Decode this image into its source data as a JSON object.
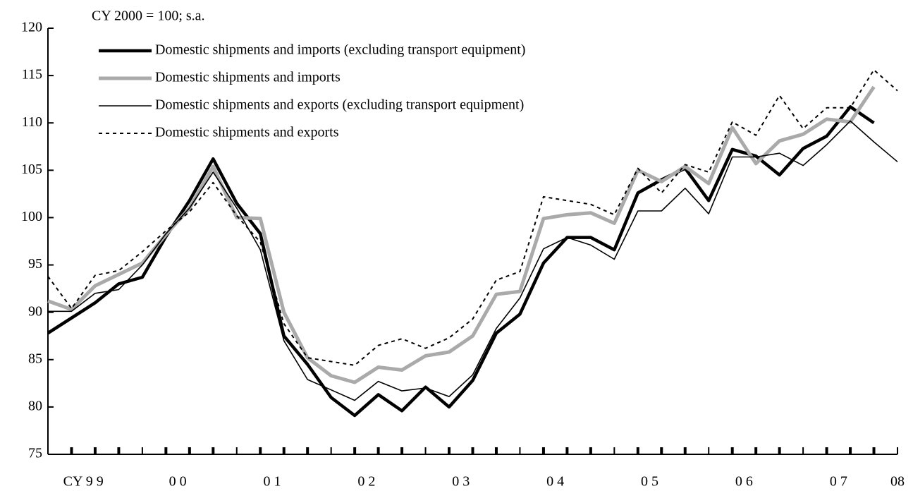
{
  "chart_data": {
    "type": "line",
    "y_unit_label": "CY 2000 = 100; s.a.",
    "xlabels": [
      "CY 9 9",
      "0 0",
      "0 1",
      "0 2",
      "0 3",
      "0 4",
      "0 5",
      "0 6",
      "0 7",
      "08"
    ],
    "ylim": [
      75,
      120
    ],
    "yticks": [
      75,
      80,
      85,
      90,
      95,
      100,
      105,
      110,
      115,
      120
    ],
    "grid": false,
    "legend": "upper left",
    "series": [
      {
        "name": "Domestic shipments and imports (excluding transport equipment)",
        "color": "#000000",
        "width": 4.5,
        "dash": "none",
        "values": [
          87.8,
          89.4,
          91,
          93,
          93.7,
          98,
          101.8,
          106.2,
          101.5,
          98.3,
          87.5,
          84.5,
          81,
          79.1,
          81.3,
          79.6,
          82.1,
          80,
          82.8,
          87.8,
          89.8,
          95.2,
          97.9,
          97.9,
          96.6,
          102.6,
          104,
          105.2,
          101.8,
          107.2,
          106.5,
          104.5,
          107.3,
          108.6,
          111.7,
          110,
          null
        ]
      },
      {
        "name": "Domestic shipments and imports",
        "color": "#aaaaaa",
        "width": 5,
        "dash": "none",
        "values": [
          91.2,
          90.3,
          92.8,
          94,
          95.2,
          98.2,
          101,
          105.4,
          100,
          99.9,
          90,
          85.2,
          83.3,
          82.6,
          84.2,
          83.9,
          85.4,
          85.8,
          87.5,
          91.9,
          92.2,
          99.9,
          100.3,
          100.5,
          99.4,
          105,
          103.8,
          105.4,
          103.6,
          109.5,
          105.7,
          108.1,
          108.8,
          110.4,
          110.1,
          113.8,
          null
        ]
      },
      {
        "name": "Domestic shipments and exports (excluding transport equipment)",
        "color": "#000000",
        "width": 1.6,
        "dash": "none",
        "values": [
          90.1,
          90.1,
          92,
          92.4,
          95,
          98.3,
          101,
          104.8,
          101,
          96.6,
          87,
          82.9,
          81.8,
          80.7,
          82.7,
          81.7,
          82,
          81.1,
          83.4,
          88.3,
          91.5,
          96.7,
          97.9,
          97.1,
          95.6,
          100.7,
          100.7,
          103.1,
          100.4,
          106.4,
          106.4,
          106.8,
          105.5,
          107.7,
          110.2,
          108,
          105.9
        ]
      },
      {
        "name": "Domestic shipments and exports",
        "color": "#000000",
        "width": 2,
        "dash": "5 5",
        "values": [
          93.8,
          90.4,
          93.9,
          94.4,
          96.4,
          98.6,
          100.6,
          103.7,
          100.2,
          97.4,
          88.8,
          85.2,
          84.8,
          84.4,
          86.5,
          87.2,
          86.2,
          87.3,
          89.3,
          93.4,
          94.3,
          102.2,
          101.8,
          101.4,
          100.3,
          105.2,
          102.6,
          105.6,
          104.8,
          110.1,
          108.7,
          112.9,
          109.4,
          111.6,
          111.6,
          115.6,
          113.4
        ]
      }
    ]
  }
}
